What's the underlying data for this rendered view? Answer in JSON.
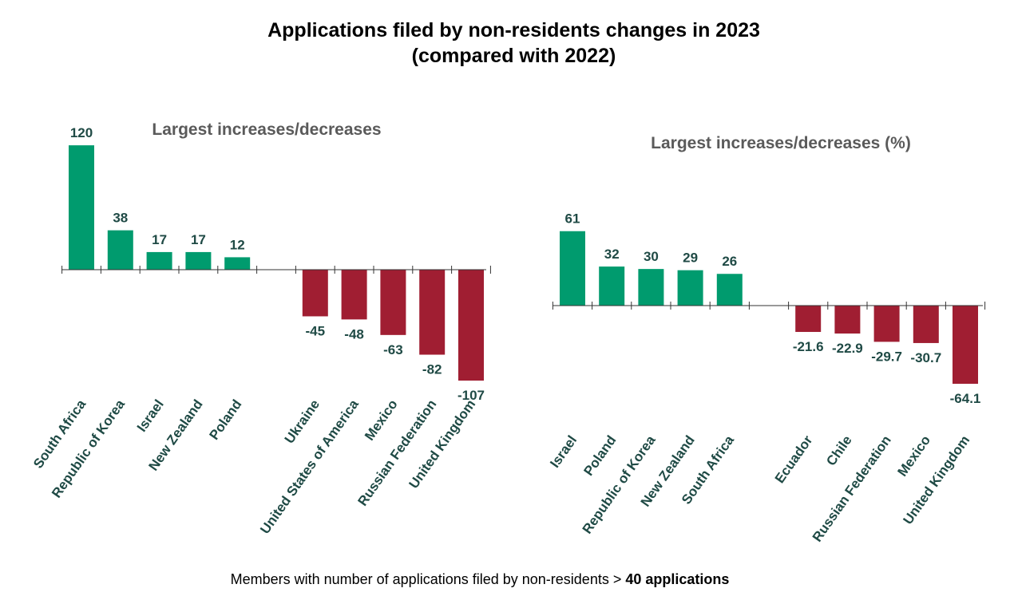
{
  "title": {
    "line1": "Applications filed by non-residents changes in 2023",
    "line2": "(compared with 2022)"
  },
  "footnote": {
    "text": "Members with number of applications filed by non-residents > ",
    "bold": "40 applications"
  },
  "colors": {
    "increase": "#009B6E",
    "decrease": "#A01E32",
    "label": "#1F4A45",
    "subtitle": "#5A5A5A",
    "axis": "#333333"
  },
  "chart_data": [
    {
      "type": "bar",
      "title": "Largest increases/decreases",
      "categories": [
        "South Africa",
        "Republic of Korea",
        "Israel",
        "New Zealand",
        "Poland",
        "Ukraine",
        "United States of America",
        "Mexico",
        "Russian Federation",
        "United Kingdom"
      ],
      "values": [
        120,
        38,
        17,
        17,
        12,
        -45,
        -48,
        -63,
        -82,
        -107
      ],
      "value_labels": [
        "120",
        "38",
        "17",
        "17",
        "12",
        "-45",
        "-48",
        "-63",
        "-82",
        "-107"
      ],
      "xlabel": "",
      "ylabel": "",
      "grid": false
    },
    {
      "type": "bar",
      "title": "Largest increases/decreases (%)",
      "categories": [
        "Israel",
        "Poland",
        "Republic of Korea",
        "New Zealand",
        "South Africa",
        "Ecuador",
        "Chile",
        "Russian Federation",
        "Mexico",
        "United Kingdom"
      ],
      "values": [
        61,
        32,
        30,
        29,
        26,
        -21.6,
        -22.9,
        -29.7,
        -30.7,
        -64.1
      ],
      "value_labels": [
        "61",
        "32",
        "30",
        "29",
        "26",
        "-21.6",
        "-22.9",
        "-29.7",
        "-30.7",
        "-64.1"
      ],
      "xlabel": "",
      "ylabel": "",
      "grid": false
    }
  ]
}
